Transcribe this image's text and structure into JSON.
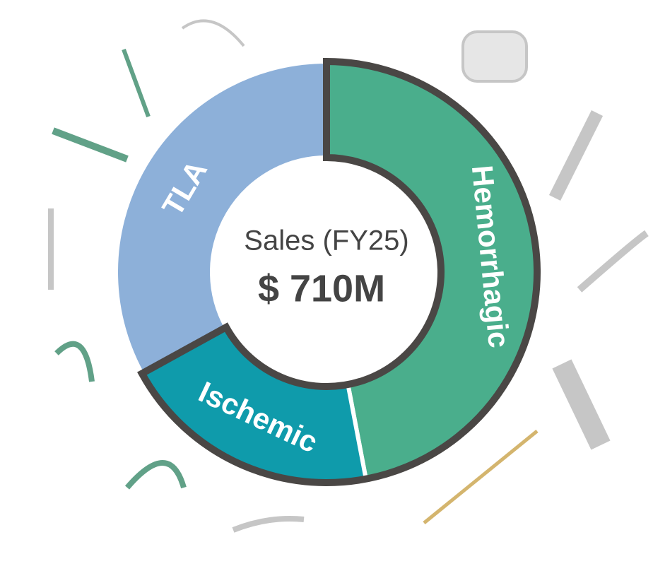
{
  "chart_data": {
    "type": "donut",
    "title": "Sales (FY25)",
    "total_label": "$ 710M",
    "categories": [
      "Hemorrhagic",
      "Ischemic",
      "TLA"
    ],
    "values": [
      47,
      20,
      33
    ],
    "colors": [
      "#4aae8c",
      "#0f9bab",
      "#8db0d9"
    ],
    "highlighted": [
      "Hemorrhagic",
      "Ischemic"
    ]
  }
}
